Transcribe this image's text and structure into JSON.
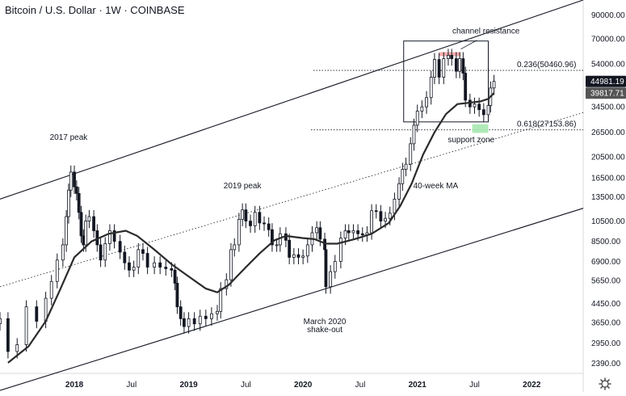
{
  "header": {
    "title": "Bitcoin / U.S. Dollar · 1W · COINBASE"
  },
  "settings": {
    "icon": "gear-icon"
  },
  "chart_data": {
    "type": "candlestick",
    "title": "Bitcoin / U.S. Dollar · 1W · COINBASE",
    "xlabel": "",
    "ylabel": "",
    "y_scale": "log",
    "ylim": [
      2150,
      105000
    ],
    "xlim": [
      2017.35,
      2022.45
    ],
    "y_ticks": [
      "90000.00",
      "70000.00",
      "54000.00",
      "44500.00",
      "34500.00",
      "26500.00",
      "20500.00",
      "16500.00",
      "13500.00",
      "10500.00",
      "8500.00",
      "6900.00",
      "5650.00",
      "4450.00",
      "3650.00",
      "2950.00",
      "2390.00"
    ],
    "x_ticks": [
      {
        "label": "2018",
        "t": 2018.0,
        "bold": true
      },
      {
        "label": "Jul",
        "t": 2018.5,
        "bold": false
      },
      {
        "label": "2019",
        "t": 2019.0,
        "bold": true
      },
      {
        "label": "Jul",
        "t": 2019.5,
        "bold": false
      },
      {
        "label": "2020",
        "t": 2020.0,
        "bold": true
      },
      {
        "label": "Jul",
        "t": 2020.5,
        "bold": false
      },
      {
        "label": "2021",
        "t": 2021.0,
        "bold": true
      },
      {
        "label": "Jul",
        "t": 2021.5,
        "bold": false
      },
      {
        "label": "2022",
        "t": 2022.0,
        "bold": true
      }
    ],
    "price_labels": [
      {
        "value": 44981.19,
        "text": "44981.19"
      },
      {
        "value": 39817.71,
        "text": "39817.71"
      }
    ],
    "candles_weekly_close": [
      [
        2017.35,
        3800
      ],
      [
        2017.42,
        2700
      ],
      [
        2017.5,
        2900
      ],
      [
        2017.58,
        4300
      ],
      [
        2017.67,
        3700
      ],
      [
        2017.75,
        4700
      ],
      [
        2017.8,
        5600
      ],
      [
        2017.85,
        7000
      ],
      [
        2017.9,
        8200
      ],
      [
        2017.93,
        11000
      ],
      [
        2017.95,
        14500
      ],
      [
        2017.97,
        17500
      ],
      [
        2018.0,
        15000
      ],
      [
        2018.02,
        14000
      ],
      [
        2018.04,
        11500
      ],
      [
        2018.06,
        9000
      ],
      [
        2018.08,
        8200
      ],
      [
        2018.1,
        10500
      ],
      [
        2018.13,
        11000
      ],
      [
        2018.17,
        9500
      ],
      [
        2018.2,
        8200
      ],
      [
        2018.23,
        7000
      ],
      [
        2018.27,
        8300
      ],
      [
        2018.31,
        9500
      ],
      [
        2018.35,
        8500
      ],
      [
        2018.4,
        7600
      ],
      [
        2018.44,
        6800
      ],
      [
        2018.48,
        6300
      ],
      [
        2018.52,
        6500
      ],
      [
        2018.56,
        7800
      ],
      [
        2018.6,
        7500
      ],
      [
        2018.64,
        6500
      ],
      [
        2018.7,
        6800
      ],
      [
        2018.75,
        6500
      ],
      [
        2018.8,
        6400
      ],
      [
        2018.85,
        6300
      ],
      [
        2018.88,
        5500
      ],
      [
        2018.9,
        4300
      ],
      [
        2018.93,
        3800
      ],
      [
        2018.96,
        3500
      ],
      [
        2019.0,
        3800
      ],
      [
        2019.05,
        3600
      ],
      [
        2019.1,
        3900
      ],
      [
        2019.15,
        3800
      ],
      [
        2019.2,
        4000
      ],
      [
        2019.25,
        4100
      ],
      [
        2019.28,
        5200
      ],
      [
        2019.33,
        5700
      ],
      [
        2019.37,
        7800
      ],
      [
        2019.4,
        8200
      ],
      [
        2019.44,
        10700
      ],
      [
        2019.47,
        11800
      ],
      [
        2019.5,
        10500
      ],
      [
        2019.54,
        10000
      ],
      [
        2019.58,
        11500
      ],
      [
        2019.62,
        10300
      ],
      [
        2019.66,
        10200
      ],
      [
        2019.7,
        9600
      ],
      [
        2019.73,
        8200
      ],
      [
        2019.77,
        8200
      ],
      [
        2019.8,
        9200
      ],
      [
        2019.85,
        8600
      ],
      [
        2019.88,
        7200
      ],
      [
        2019.92,
        7400
      ],
      [
        2019.96,
        7200
      ],
      [
        2020.0,
        7300
      ],
      [
        2020.04,
        8200
      ],
      [
        2020.08,
        9300
      ],
      [
        2020.12,
        9800
      ],
      [
        2020.15,
        8700
      ],
      [
        2020.19,
        7800
      ],
      [
        2020.2,
        5300
      ],
      [
        2020.24,
        6200
      ],
      [
        2020.28,
        6900
      ],
      [
        2020.33,
        8800
      ],
      [
        2020.37,
        9500
      ],
      [
        2020.4,
        9300
      ],
      [
        2020.44,
        9500
      ],
      [
        2020.48,
        9200
      ],
      [
        2020.52,
        9100
      ],
      [
        2020.56,
        9300
      ],
      [
        2020.6,
        11700
      ],
      [
        2020.64,
        11600
      ],
      [
        2020.68,
        10500
      ],
      [
        2020.72,
        10800
      ],
      [
        2020.76,
        11400
      ],
      [
        2020.8,
        13200
      ],
      [
        2020.84,
        15500
      ],
      [
        2020.87,
        18000
      ],
      [
        2020.9,
        19000
      ],
      [
        2020.94,
        23500
      ],
      [
        2020.97,
        28500
      ],
      [
        2021.0,
        33000
      ],
      [
        2021.04,
        34500
      ],
      [
        2021.08,
        38000
      ],
      [
        2021.12,
        47000
      ],
      [
        2021.15,
        56500
      ],
      [
        2021.19,
        47000
      ],
      [
        2021.23,
        57000
      ],
      [
        2021.27,
        59000
      ],
      [
        2021.3,
        57000
      ],
      [
        2021.34,
        50000
      ],
      [
        2021.37,
        57000
      ],
      [
        2021.4,
        49000
      ],
      [
        2021.42,
        37000
      ],
      [
        2021.46,
        34500
      ],
      [
        2021.5,
        35500
      ],
      [
        2021.54,
        33500
      ],
      [
        2021.58,
        31800
      ],
      [
        2021.62,
        35000
      ],
      [
        2021.64,
        42000
      ],
      [
        2021.67,
        44981
      ]
    ],
    "series": [
      {
        "name": "",
        "type": "line",
        "points": [
          [
            2017.42,
            2400
          ],
          [
            2017.6,
            2850
          ],
          [
            2017.75,
            3700
          ],
          [
            2017.88,
            5200
          ],
          [
            2018.0,
            7200
          ],
          [
            2018.15,
            8500
          ],
          [
            2018.3,
            9200
          ],
          [
            2018.45,
            9500
          ],
          [
            2018.55,
            9000
          ],
          [
            2018.7,
            7800
          ],
          [
            2018.85,
            6700
          ],
          [
            2019.0,
            5900
          ],
          [
            2019.15,
            5200
          ],
          [
            2019.25,
            5000
          ],
          [
            2019.35,
            5400
          ],
          [
            2019.5,
            6500
          ],
          [
            2019.62,
            7500
          ],
          [
            2019.75,
            8600
          ],
          [
            2019.85,
            9000
          ],
          [
            2020.0,
            8800
          ],
          [
            2020.1,
            8700
          ],
          [
            2020.2,
            8300
          ],
          [
            2020.3,
            8300
          ],
          [
            2020.45,
            8700
          ],
          [
            2020.6,
            9200
          ],
          [
            2020.75,
            10300
          ],
          [
            2020.85,
            12300
          ],
          [
            2020.95,
            15500
          ],
          [
            2021.05,
            21000
          ],
          [
            2021.15,
            26500
          ],
          [
            2021.25,
            32000
          ],
          [
            2021.35,
            35500
          ],
          [
            2021.45,
            36000
          ],
          [
            2021.55,
            36500
          ],
          [
            2021.62,
            37500
          ],
          [
            2021.67,
            39818
          ]
        ]
      }
    ],
    "annotations": [
      {
        "text": "2017 peak",
        "t": 2017.95,
        "value": 24500
      },
      {
        "text": "2019 peak",
        "t": 2019.47,
        "value": 14800
      },
      {
        "text": "40-week MA",
        "t": 2021.16,
        "value": 14800
      },
      {
        "text": "March 2020",
        "t": 2020.19,
        "value": 3590
      },
      {
        "text": "shake-out",
        "t": 2020.19,
        "value": 3300
      },
      {
        "text": "channel resistance",
        "t": 2021.6,
        "value": 74000
      },
      {
        "text": "support zone",
        "t": 2021.47,
        "value": 23900
      }
    ],
    "levels": [
      {
        "label": "0.236(50460.96)",
        "value": 50460.96
      },
      {
        "label": "0.618(27153.86)",
        "value": 27153.86
      }
    ]
  }
}
